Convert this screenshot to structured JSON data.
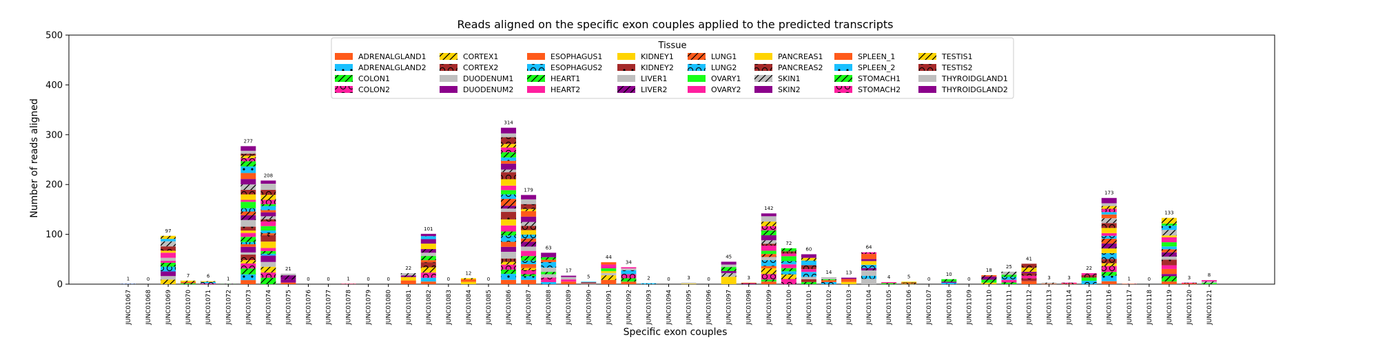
{
  "chart_data": {
    "type": "bar",
    "stacked": true,
    "title": "Reads aligned on the specific exon couples applied to the predicted transcripts",
    "xlabel": "Specific exon couples",
    "ylabel": "Number of reads aligned",
    "ylim": [
      0,
      500
    ],
    "yticks": [
      0,
      100,
      200,
      300,
      400,
      500
    ],
    "grid": false,
    "legend": {
      "title": "Tissue",
      "placement": "top-center",
      "entries": [
        {
          "name": "ADRENALGLAND1",
          "color": "#ff5a1a",
          "pattern": "none"
        },
        {
          "name": "ADRENALGLAND2",
          "color": "#19c0ff",
          "pattern": "dots"
        },
        {
          "name": "COLON1",
          "color": "#18ff18",
          "pattern": "slash"
        },
        {
          "name": "COLON2",
          "color": "#ff1f9f",
          "pattern": "circles"
        },
        {
          "name": "CORTEX1",
          "color": "#ffd400",
          "pattern": "slash"
        },
        {
          "name": "CORTEX2",
          "color": "#a52a2a",
          "pattern": "circles"
        },
        {
          "name": "DUODENUM1",
          "color": "#bfbfbf",
          "pattern": "none"
        },
        {
          "name": "DUODENUM2",
          "color": "#8b008b",
          "pattern": "none"
        },
        {
          "name": "ESOPHAGUS1",
          "color": "#ff5a1a",
          "pattern": "none"
        },
        {
          "name": "ESOPHAGUS2",
          "color": "#19c0ff",
          "pattern": "circles"
        },
        {
          "name": "HEART1",
          "color": "#18ff18",
          "pattern": "slash"
        },
        {
          "name": "HEART2",
          "color": "#ff1f9f",
          "pattern": "none"
        },
        {
          "name": "KIDNEY1",
          "color": "#ffd400",
          "pattern": "none"
        },
        {
          "name": "KIDNEY2",
          "color": "#a52a2a",
          "pattern": "dots"
        },
        {
          "name": "LIVER1",
          "color": "#bfbfbf",
          "pattern": "none"
        },
        {
          "name": "LIVER2",
          "color": "#8b008b",
          "pattern": "slash"
        },
        {
          "name": "LUNG1",
          "color": "#ff5a1a",
          "pattern": "slash"
        },
        {
          "name": "LUNG2",
          "color": "#19c0ff",
          "pattern": "circles"
        },
        {
          "name": "OVARY1",
          "color": "#18ff18",
          "pattern": "none"
        },
        {
          "name": "OVARY2",
          "color": "#ff1f9f",
          "pattern": "none"
        },
        {
          "name": "PANCREAS1",
          "color": "#ffd400",
          "pattern": "none"
        },
        {
          "name": "PANCREAS2",
          "color": "#a52a2a",
          "pattern": "circles"
        },
        {
          "name": "SKIN1",
          "color": "#bfbfbf",
          "pattern": "slash"
        },
        {
          "name": "SKIN2",
          "color": "#8b008b",
          "pattern": "none"
        },
        {
          "name": "SPLEEN_1",
          "color": "#ff5a1a",
          "pattern": "none"
        },
        {
          "name": "SPLEEN_2",
          "color": "#19c0ff",
          "pattern": "dots"
        },
        {
          "name": "STOMACH1",
          "color": "#18ff18",
          "pattern": "slash"
        },
        {
          "name": "STOMACH2",
          "color": "#ff1f9f",
          "pattern": "circles"
        },
        {
          "name": "TESTIS1",
          "color": "#ffd400",
          "pattern": "slash"
        },
        {
          "name": "TESTIS2",
          "color": "#a52a2a",
          "pattern": "circles"
        },
        {
          "name": "THYROIDGLAND1",
          "color": "#bfbfbf",
          "pattern": "none"
        },
        {
          "name": "THYROIDGLAND2",
          "color": "#8b008b",
          "pattern": "none"
        }
      ]
    },
    "categories": [
      "JUNC01067",
      "JUNC01068",
      "JUNC01069",
      "JUNC01070",
      "JUNC01071",
      "JUNC01072",
      "JUNC01073",
      "JUNC01074",
      "JUNC01075",
      "JUNC01076",
      "JUNC01077",
      "JUNC01078",
      "JUNC01079",
      "JUNC01080",
      "JUNC01081",
      "JUNC01082",
      "JUNC01083",
      "JUNC01084",
      "JUNC01085",
      "JUNC01086",
      "JUNC01087",
      "JUNC01088",
      "JUNC01089",
      "JUNC01090",
      "JUNC01091",
      "JUNC01092",
      "JUNC01093",
      "JUNC01094",
      "JUNC01095",
      "JUNC01096",
      "JUNC01097",
      "JUNC01098",
      "JUNC01099",
      "JUNC01100",
      "JUNC01101",
      "JUNC01102",
      "JUNC01103",
      "JUNC01104",
      "JUNC01105",
      "JUNC01106",
      "JUNC01107",
      "JUNC01108",
      "JUNC01109",
      "JUNC01110",
      "JUNC01111",
      "JUNC01112",
      "JUNC01113",
      "JUNC01114",
      "JUNC01115",
      "JUNC01116",
      "JUNC01117",
      "JUNC01118",
      "JUNC01119",
      "JUNC01120",
      "JUNC01121"
    ],
    "totals": [
      1,
      0,
      97,
      7,
      6,
      1,
      277,
      208,
      21,
      0,
      0,
      1,
      0,
      0,
      22,
      101,
      0,
      12,
      0,
      314,
      179,
      63,
      17,
      5,
      44,
      34,
      2,
      0,
      3,
      0,
      45,
      3,
      142,
      72,
      60,
      14,
      13,
      64,
      4,
      5,
      0,
      10,
      0,
      18,
      25,
      41,
      3,
      3,
      22,
      173,
      1,
      0,
      133,
      3,
      8
    ],
    "value_labels": [
      "1",
      "0",
      "97",
      "7",
      "6",
      "1",
      "277",
      "208",
      "21",
      "0",
      "0",
      "1",
      "0",
      "0",
      "22",
      "101",
      "0",
      "12",
      "0",
      "314",
      "179",
      "63",
      "17",
      "5",
      "44",
      "34",
      "2",
      "0",
      "3",
      "0",
      "45",
      "3",
      "142",
      "72",
      "60",
      "14",
      "13",
      "64",
      "4",
      "5",
      "0",
      "10",
      "0",
      "18",
      "25",
      "41",
      "3",
      "3",
      "22",
      "173",
      "1",
      "0",
      "133",
      "3",
      "8"
    ]
  }
}
